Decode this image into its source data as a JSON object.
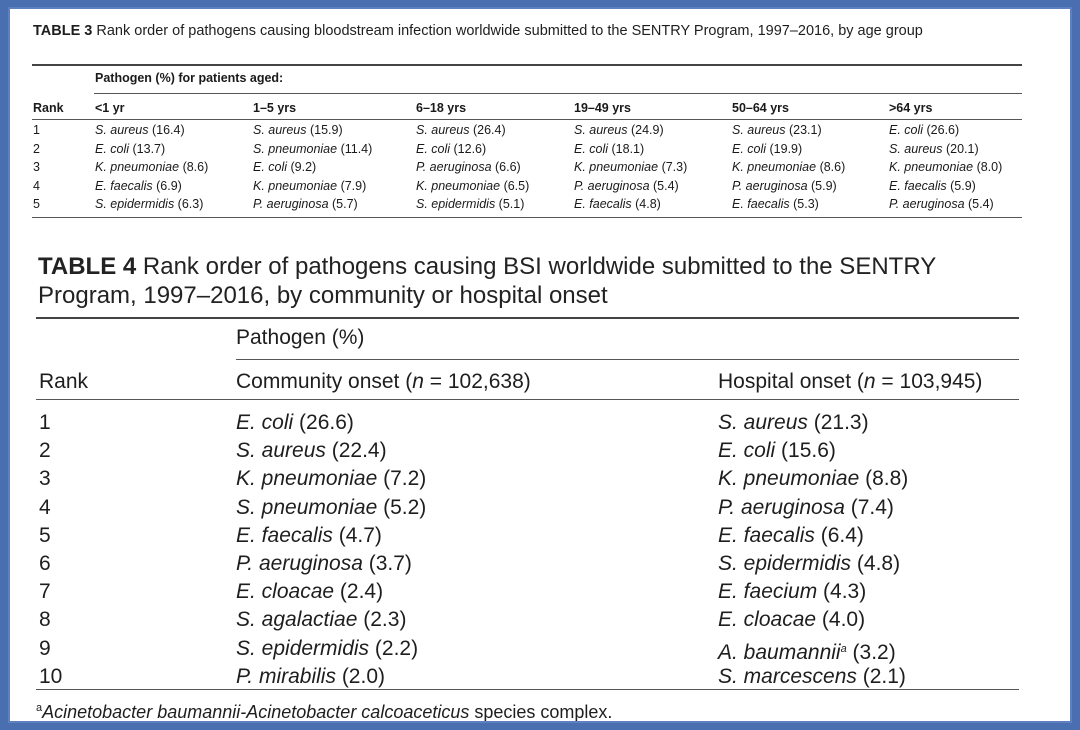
{
  "table3": {
    "label": "TABLE 3",
    "caption": "Rank order of pathogens causing bloodstream infection worldwide submitted to the SENTRY Program, 1997–2016, by age group",
    "spanner": "Pathogen (%) for patients aged:",
    "rank_header": "Rank",
    "columns": [
      "<1 yr",
      "1–5 yrs",
      "6–18 yrs",
      "19–49 yrs",
      "50–64 yrs",
      ">64 yrs"
    ],
    "rows": [
      {
        "rank": "1",
        "cells": [
          [
            "S. aureus",
            " (16.4)"
          ],
          [
            "S. aureus",
            " (15.9)"
          ],
          [
            "S. aureus",
            " (26.4)"
          ],
          [
            "S. aureus",
            " (24.9)"
          ],
          [
            "S. aureus",
            " (23.1)"
          ],
          [
            "E. coli",
            " (26.6)"
          ]
        ]
      },
      {
        "rank": "2",
        "cells": [
          [
            "E. coli",
            " (13.7)"
          ],
          [
            "S. pneumoniae",
            " (11.4)"
          ],
          [
            "E. coli",
            " (12.6)"
          ],
          [
            "E. coli",
            " (18.1)"
          ],
          [
            "E. coli",
            " (19.9)"
          ],
          [
            "S. aureus",
            " (20.1)"
          ]
        ]
      },
      {
        "rank": "3",
        "cells": [
          [
            "K. pneumoniae",
            " (8.6)"
          ],
          [
            "E. coli",
            " (9.2)"
          ],
          [
            "P. aeruginosa",
            " (6.6)"
          ],
          [
            "K. pneumoniae",
            " (7.3)"
          ],
          [
            "K. pneumoniae",
            " (8.6)"
          ],
          [
            "K. pneumoniae",
            " (8.0)"
          ]
        ]
      },
      {
        "rank": "4",
        "cells": [
          [
            "E. faecalis",
            " (6.9)"
          ],
          [
            "K. pneumoniae",
            " (7.9)"
          ],
          [
            "K. pneumoniae",
            " (6.5)"
          ],
          [
            "P. aeruginosa",
            " (5.4)"
          ],
          [
            "P. aeruginosa",
            " (5.9)"
          ],
          [
            "E. faecalis",
            " (5.9)"
          ]
        ]
      },
      {
        "rank": "5",
        "cells": [
          [
            "S. epidermidis",
            " (6.3)"
          ],
          [
            "P. aeruginosa",
            " (5.7)"
          ],
          [
            "S. epidermidis",
            " (5.1)"
          ],
          [
            "E. faecalis",
            " (4.8)"
          ],
          [
            "E. faecalis",
            " (5.3)"
          ],
          [
            "P. aeruginosa",
            " (5.4)"
          ]
        ]
      }
    ]
  },
  "table4": {
    "label": "TABLE 4",
    "caption": "Rank order of pathogens causing BSI worldwide submitted to the SENTRY Program, 1997–2016, by community or hospital onset",
    "spanner": "Pathogen (%)",
    "rank_header": "Rank",
    "community_header": {
      "pre": "Community onset (",
      "n": "n",
      "post": " = 102,638)"
    },
    "hospital_header": {
      "pre": "Hospital onset (",
      "n": "n",
      "post": " = 103,945)"
    },
    "rows": [
      {
        "rank": "1",
        "community": [
          "E. coli",
          " (26.6)"
        ],
        "hospital": [
          "S. aureus",
          " (21.3)"
        ]
      },
      {
        "rank": "2",
        "community": [
          "S. aureus",
          " (22.4)"
        ],
        "hospital": [
          "E. coli",
          " (15.6)"
        ]
      },
      {
        "rank": "3",
        "community": [
          "K. pneumoniae",
          " (7.2)"
        ],
        "hospital": [
          "K. pneumoniae",
          " (8.8)"
        ]
      },
      {
        "rank": "4",
        "community": [
          "S. pneumoniae",
          " (5.2)"
        ],
        "hospital": [
          "P. aeruginosa",
          " (7.4)"
        ]
      },
      {
        "rank": "5",
        "community": [
          "E. faecalis",
          " (4.7)"
        ],
        "hospital": [
          "E. faecalis",
          " (6.4)"
        ]
      },
      {
        "rank": "6",
        "community": [
          "P. aeruginosa",
          " (3.7)"
        ],
        "hospital": [
          "S. epidermidis",
          " (4.8)"
        ]
      },
      {
        "rank": "7",
        "community": [
          "E. cloacae",
          " (2.4)"
        ],
        "hospital": [
          "E. faecium",
          " (4.3)"
        ]
      },
      {
        "rank": "8",
        "community": [
          "S. agalactiae",
          " (2.3)"
        ],
        "hospital": [
          "E. cloacae",
          " (4.0)"
        ]
      },
      {
        "rank": "9",
        "community": [
          "S. epidermidis",
          " (2.2)"
        ],
        "hospital": [
          "A. baumannii",
          "a",
          " (3.2)"
        ]
      },
      {
        "rank": "10",
        "community": [
          "P. mirabilis",
          " (2.0)"
        ],
        "hospital": [
          "S. marcescens",
          " (2.1)"
        ]
      }
    ],
    "footnote": {
      "mark": "a",
      "species": "Acinetobacter baumannii-Acinetobacter calcoaceticus",
      "rest": " species complex."
    }
  }
}
